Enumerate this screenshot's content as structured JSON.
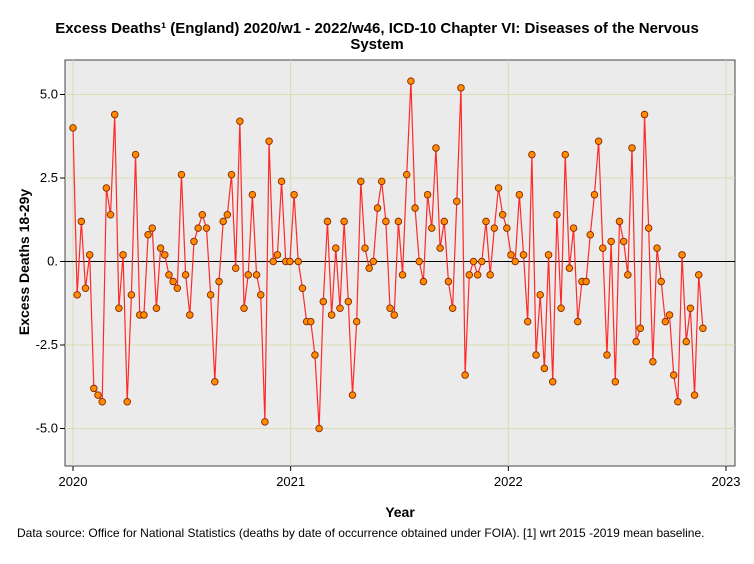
{
  "chart_data": {
    "type": "line",
    "title_line1": "Excess Deaths¹ (England) 2020/w1 - 2022/w46, ICD-10 Chapter VI: Diseases of the Nervous",
    "title_line2": "System",
    "xlabel": "Year",
    "ylabel": "Excess Deaths 18-29y",
    "xlim": [
      2020.0,
      2023.0
    ],
    "ylim": [
      -6.2,
      6.2
    ],
    "x_ticks": [
      {
        "value": 2020,
        "label": "2020"
      },
      {
        "value": 2021,
        "label": "2021"
      },
      {
        "value": 2022,
        "label": "2022"
      },
      {
        "value": 2023,
        "label": "2023"
      }
    ],
    "y_ticks": [
      {
        "value": 5.0,
        "label": "5.0"
      },
      {
        "value": 2.5,
        "label": "2.5"
      },
      {
        "value": 0.0,
        "label": "0."
      },
      {
        "value": -2.5,
        "label": "-2.5"
      },
      {
        "value": -5.0,
        "label": "-5.0"
      }
    ],
    "reference_line": 0,
    "grid": true,
    "colors": {
      "plot_background": "#ebebeb",
      "grid": "#d8dcb0",
      "line": "#ff2a2a",
      "marker_fill": "#ff8c00",
      "marker_edge": "#8b2500",
      "reference": "#000000"
    },
    "series": [
      {
        "name": "Excess Deaths 18-29y",
        "x_start": 2020.0,
        "x_step_weeks": 1,
        "values": [
          4.0,
          -1.0,
          1.2,
          -0.8,
          0.2,
          -3.8,
          -4.0,
          -4.2,
          2.2,
          1.4,
          4.4,
          -1.4,
          0.2,
          -4.2,
          -1.0,
          3.2,
          -1.6,
          -1.6,
          0.8,
          1.0,
          -1.4,
          0.4,
          0.2,
          -0.4,
          -0.6,
          -0.8,
          2.6,
          -0.4,
          -1.6,
          0.6,
          1.0,
          1.4,
          1.0,
          -1.0,
          -3.6,
          -0.6,
          1.2,
          1.4,
          2.6,
          -0.2,
          4.2,
          -1.4,
          -0.4,
          2.0,
          -0.4,
          -1.0,
          -4.8,
          3.6,
          0.0,
          0.2,
          2.4,
          0.0,
          0.0,
          2.0,
          0.0,
          -0.8,
          -1.8,
          -1.8,
          -2.8,
          -5.0,
          -1.2,
          1.2,
          -1.6,
          0.4,
          -1.4,
          1.2,
          -1.2,
          -4.0,
          -1.8,
          2.4,
          0.4,
          -0.2,
          0.0,
          1.6,
          2.4,
          1.2,
          -1.4,
          -1.6,
          1.2,
          -0.4,
          2.6,
          5.4,
          1.6,
          0.0,
          -0.6,
          2.0,
          1.0,
          3.4,
          0.4,
          1.2,
          -0.6,
          -1.4,
          1.8,
          5.2,
          -3.4,
          -0.4,
          0.0,
          -0.4,
          0.0,
          1.2,
          -0.4,
          1.0,
          2.2,
          1.4,
          1.0,
          0.2,
          0.0,
          2.0,
          0.2,
          -1.8,
          3.2,
          -2.8,
          -1.0,
          -3.2,
          0.2,
          -3.6,
          1.4,
          -1.4,
          3.2,
          -0.2,
          1.0,
          -1.8,
          -0.6,
          -0.6,
          0.8,
          2.0,
          3.6,
          0.4,
          -2.8,
          0.6,
          -3.6,
          1.2,
          0.6,
          -0.4,
          3.4,
          -2.4,
          -2.0,
          4.4,
          1.0,
          -3.0,
          0.4,
          -0.6,
          -1.8,
          -1.6,
          -3.4,
          -4.2,
          0.2,
          -2.4,
          -1.4,
          -4.0,
          -0.4,
          -2.0
        ]
      }
    ]
  },
  "footnote": "Data source: Office for National Statistics (deaths by date of occurrence obtained under FOIA). [1] wrt 2015 -2019 mean baseline."
}
